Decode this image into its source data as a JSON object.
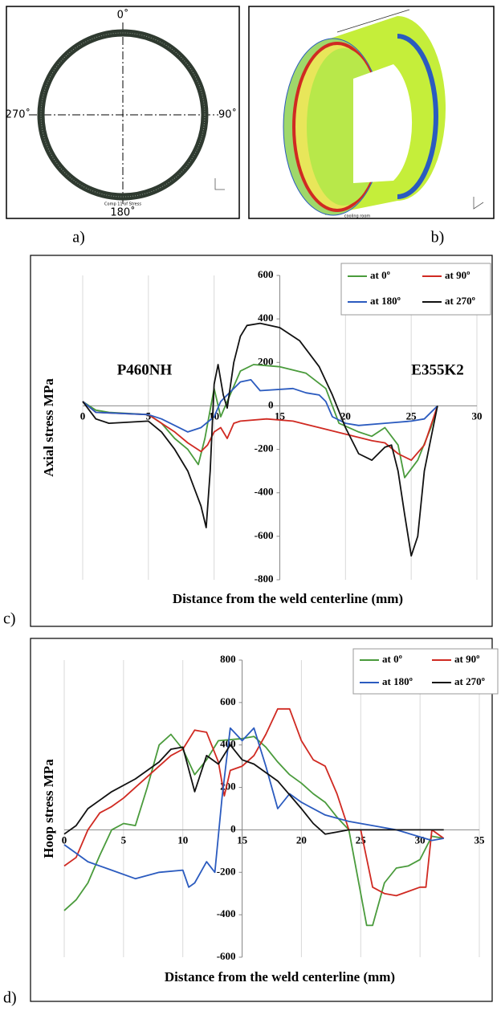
{
  "panel_labels": [
    "a)",
    "b)",
    "c)",
    "d)"
  ],
  "panel_a": {
    "angles": [
      "0˚",
      "90˚",
      "180˚",
      "270˚"
    ],
    "caption": "Comp 11 of Stress"
  },
  "panel_b": {
    "caption": "cooling room"
  },
  "chart_data": [
    {
      "type": "line",
      "xlabel": "Distance from the weld centerline (mm)",
      "ylabel": "Axial stress MPa",
      "annotations": [
        "P460NH",
        "E355K2"
      ],
      "xlim": [
        0,
        30
      ],
      "xticks": [
        0,
        5,
        10,
        15,
        20,
        25,
        30
      ],
      "ylim": [
        -800,
        600
      ],
      "yticks": [
        -800,
        -600,
        -400,
        -200,
        0,
        200,
        400,
        600
      ],
      "yaxis_crossing": 15,
      "grid": "x",
      "legend": "top-right",
      "series": [
        {
          "name": "at 0º",
          "color": "#4a9b3c",
          "x": [
            0,
            1,
            2,
            5,
            6,
            7,
            8,
            8.8,
            9.3,
            10,
            10.5,
            11,
            12,
            13,
            15,
            17,
            18.5,
            19.5,
            21,
            22,
            23,
            24,
            24.5,
            25.5,
            26.5,
            27
          ],
          "values": [
            20,
            -20,
            -30,
            -40,
            -80,
            -150,
            -200,
            -270,
            -150,
            80,
            -50,
            20,
            160,
            190,
            180,
            150,
            80,
            -80,
            -120,
            -140,
            -100,
            -180,
            -330,
            -250,
            -100,
            0
          ]
        },
        {
          "name": "at 90º",
          "color": "#d02a22",
          "x": [
            0,
            1,
            5,
            6,
            7,
            8,
            9,
            9.5,
            10,
            10.5,
            11,
            11.5,
            12,
            14,
            16,
            18,
            20,
            22,
            23,
            24,
            25,
            26,
            27
          ],
          "values": [
            20,
            -30,
            -40,
            -80,
            -120,
            -170,
            -210,
            -180,
            -120,
            -100,
            -150,
            -80,
            -70,
            -60,
            -70,
            -100,
            -130,
            -160,
            -170,
            -220,
            -250,
            -180,
            0
          ]
        },
        {
          "name": "at 180º",
          "color": "#2b5bbf",
          "x": [
            0,
            1,
            5,
            6,
            7,
            8,
            9,
            10,
            10.5,
            11,
            12,
            12.8,
            13.5,
            16,
            17,
            18,
            18.5,
            19,
            20,
            21,
            23,
            25,
            26,
            27
          ],
          "values": [
            20,
            -30,
            -40,
            -60,
            -90,
            -120,
            -100,
            -50,
            20,
            50,
            110,
            120,
            70,
            80,
            60,
            50,
            20,
            -50,
            -80,
            -90,
            -80,
            -70,
            -60,
            0
          ]
        },
        {
          "name": "at 270º",
          "color": "#111111",
          "x": [
            0,
            1,
            2,
            5,
            6,
            7,
            8,
            8.5,
            9,
            9.4,
            9.7,
            10,
            10.3,
            10.7,
            11,
            11.5,
            12,
            12.5,
            13.5,
            15,
            16.5,
            18,
            19,
            20,
            21,
            22,
            23,
            23.5,
            24,
            24.5,
            25,
            25.5,
            26,
            26.5,
            27
          ],
          "values": [
            20,
            -60,
            -80,
            -70,
            -120,
            -200,
            -300,
            -380,
            -460,
            -560,
            -300,
            100,
            190,
            50,
            -10,
            200,
            320,
            370,
            380,
            360,
            300,
            180,
            50,
            -100,
            -220,
            -250,
            -190,
            -180,
            -300,
            -500,
            -690,
            -600,
            -300,
            -150,
            0
          ]
        }
      ]
    },
    {
      "type": "line",
      "xlabel": "Distance from the weld centerline (mm)",
      "ylabel": "Hoop stress MPa",
      "xlim": [
        0,
        35
      ],
      "xticks": [
        0,
        5,
        10,
        15,
        20,
        25,
        30,
        35
      ],
      "ylim": [
        -600,
        800
      ],
      "yticks": [
        -600,
        -400,
        -200,
        0,
        200,
        400,
        600,
        800
      ],
      "yaxis_crossing": 15,
      "grid": "x",
      "legend": "top-right",
      "series": [
        {
          "name": "at 0º",
          "color": "#4a9b3c",
          "x": [
            0,
            1,
            2,
            3,
            4,
            5,
            6,
            7,
            8,
            9,
            10,
            11,
            12,
            13,
            15,
            16,
            17,
            18,
            19,
            20,
            21,
            22,
            23,
            24,
            25,
            25.5,
            26,
            27,
            28,
            29,
            30,
            31,
            32
          ],
          "values": [
            -380,
            -330,
            -250,
            -120,
            0,
            30,
            20,
            200,
            400,
            450,
            380,
            260,
            330,
            420,
            430,
            440,
            390,
            320,
            260,
            220,
            170,
            130,
            60,
            0,
            -300,
            -450,
            -450,
            -250,
            -180,
            -170,
            -140,
            -30,
            -40
          ]
        },
        {
          "name": "at 90º",
          "color": "#d02a22",
          "x": [
            0,
            1,
            2,
            3,
            4,
            5,
            6,
            8,
            9,
            10,
            11,
            12,
            13,
            13.5,
            14,
            15,
            16,
            17,
            18,
            19,
            20,
            21,
            22,
            23,
            24,
            25,
            26,
            27,
            28,
            29,
            30,
            30.5,
            31,
            32
          ],
          "values": [
            -170,
            -130,
            0,
            80,
            110,
            150,
            200,
            300,
            350,
            380,
            470,
            460,
            320,
            160,
            280,
            300,
            350,
            450,
            570,
            570,
            420,
            330,
            300,
            170,
            0,
            0,
            -270,
            -300,
            -310,
            -290,
            -270,
            -270,
            0,
            -40
          ]
        },
        {
          "name": "at 180º",
          "color": "#2b5bbf",
          "x": [
            0,
            1,
            2,
            4,
            6,
            8,
            10,
            10.5,
            11,
            11.5,
            12,
            12.7,
            13.3,
            14,
            15,
            16,
            17,
            18,
            19,
            20,
            22,
            24,
            26,
            28,
            31,
            32
          ],
          "values": [
            -70,
            -110,
            -150,
            -190,
            -230,
            -200,
            -190,
            -270,
            -250,
            -200,
            -150,
            -200,
            150,
            480,
            420,
            480,
            300,
            100,
            170,
            130,
            70,
            40,
            20,
            0,
            -50,
            -40
          ]
        },
        {
          "name": "at 270º",
          "color": "#111111",
          "x": [
            0,
            1,
            2,
            4,
            6,
            8,
            9,
            10,
            11,
            12,
            13,
            14,
            15,
            16,
            18,
            20,
            21,
            22,
            23,
            24,
            28,
            32
          ],
          "values": [
            -20,
            20,
            100,
            180,
            240,
            320,
            380,
            390,
            180,
            350,
            310,
            400,
            330,
            310,
            230,
            100,
            30,
            -20,
            -10,
            0,
            0,
            0
          ]
        }
      ]
    }
  ]
}
